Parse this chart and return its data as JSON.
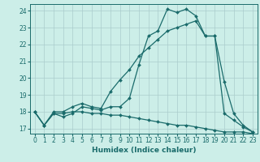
{
  "title": "",
  "xlabel": "Humidex (Indice chaleur)",
  "bg_color": "#cceee8",
  "grid_color": "#aacccc",
  "line_color": "#1a6b6b",
  "xlim": [
    -0.5,
    23.5
  ],
  "ylim": [
    16.7,
    24.4
  ],
  "yticks": [
    17,
    18,
    19,
    20,
    21,
    22,
    23,
    24
  ],
  "xticks": [
    0,
    1,
    2,
    3,
    4,
    5,
    6,
    7,
    8,
    9,
    10,
    11,
    12,
    13,
    14,
    15,
    16,
    17,
    18,
    19,
    20,
    21,
    22,
    23
  ],
  "series": [
    [
      18.0,
      17.2,
      17.9,
      17.7,
      17.9,
      18.3,
      18.2,
      18.1,
      18.3,
      18.3,
      18.8,
      20.8,
      22.5,
      22.8,
      24.1,
      23.9,
      24.1,
      23.7,
      22.5,
      22.5,
      19.8,
      17.9,
      17.2,
      16.8
    ],
    [
      18.0,
      17.2,
      18.0,
      18.0,
      18.3,
      18.5,
      18.3,
      18.2,
      19.2,
      19.9,
      20.5,
      21.3,
      21.8,
      22.3,
      22.8,
      23.0,
      23.2,
      23.4,
      22.5,
      22.5,
      17.9,
      17.5,
      17.1,
      16.8
    ],
    [
      18.0,
      17.2,
      17.9,
      17.9,
      18.0,
      18.0,
      17.9,
      17.9,
      17.8,
      17.8,
      17.7,
      17.6,
      17.5,
      17.4,
      17.3,
      17.2,
      17.2,
      17.1,
      17.0,
      16.9,
      16.8,
      16.8,
      16.8,
      16.7
    ]
  ],
  "xlabel_fontsize": 6.5,
  "tick_fontsize": 5.5,
  "linewidth": 0.9,
  "markersize": 2.0
}
